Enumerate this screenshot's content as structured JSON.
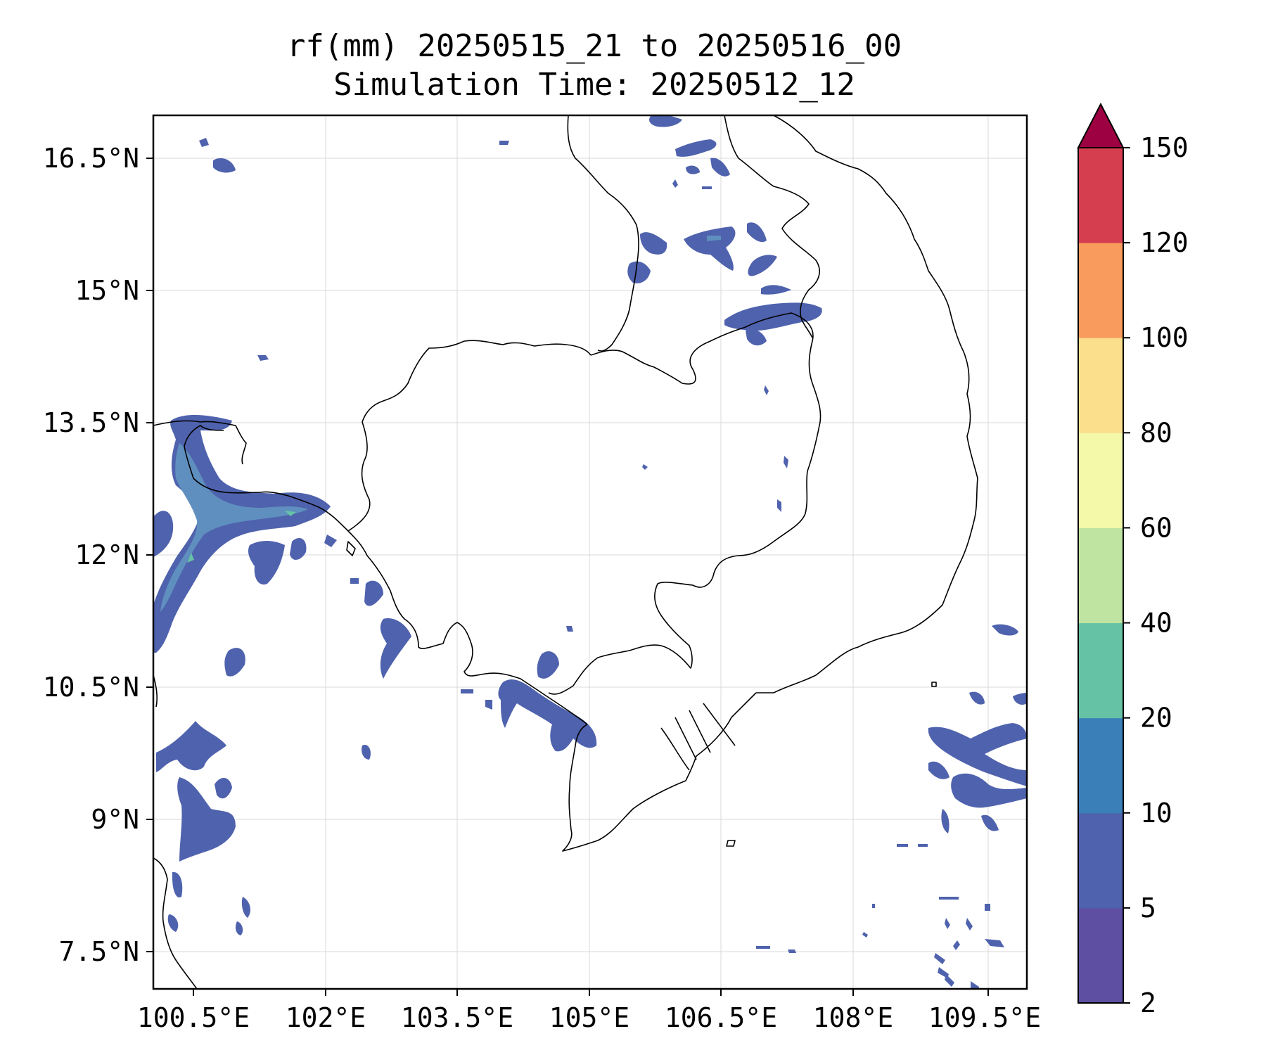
{
  "title": {
    "line1": "rf(mm) 20250515_21 to 20250516_00",
    "line2": "Simulation Time: 20250512_12"
  },
  "x_axis": {
    "ticks": [
      "100.5°E",
      "102°E",
      "103.5°E",
      "105°E",
      "106.5°E",
      "108°E",
      "109.5°E"
    ]
  },
  "y_axis": {
    "ticks": [
      "16.5°N",
      "15°N",
      "13.5°N",
      "12°N",
      "10.5°N",
      "9°N",
      "7.5°N"
    ]
  },
  "colorbar": {
    "levels": [
      "2",
      "5",
      "10",
      "20",
      "40",
      "60",
      "80",
      "100",
      "120",
      "150"
    ],
    "colors": [
      "#5e4fa2",
      "#4f62ad",
      "#3a7fb8",
      "#66c2a5",
      "#bfe3a0",
      "#f3f9a9",
      "#fbdf8c",
      "#f99b5c",
      "#d53e4f",
      "#9e0142"
    ],
    "extend": "max"
  },
  "map_extent": {
    "lon": [
      100.5,
      110.5
    ],
    "lat": [
      7,
      17
    ]
  },
  "grid": true
}
